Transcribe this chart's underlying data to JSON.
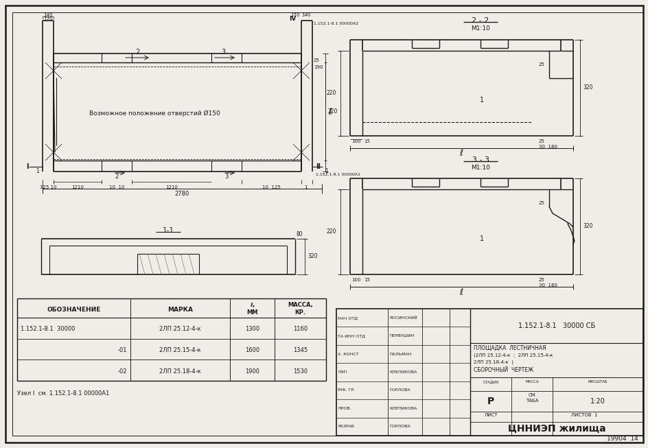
{
  "bg_color": "#f0ede8",
  "line_color": "#1a1a1a",
  "title": "1.152.1-8.1   30000 СБ",
  "sheet_title1": "ПЛОЩАДКА  ЛЕСТНИЧНАЯ",
  "sheet_title2": "(2ЛП 25.12-4-к  ;  2ЛП 25.15-4-к",
  "sheet_title3": "2ЛП 25.18-4-к  )",
  "sheet_title4": "СБОРОЧНЫЙ  ЧЕРТЕЖ",
  "stage": "Р",
  "mass_label": "СМ\nТАБА",
  "scale": "1:20",
  "list_label": "ЛИСТ",
  "sheets_label": "ЛИСТОВ  1",
  "org": "ЦННИЭП жилища",
  "drawing_num": "19904  14",
  "roles": [
    "НАЧ ОТД",
    "ТА ИНН ОТД",
    "А. КОНСТ",
    "ГИП",
    "РУК. ГР.",
    "ПРОВ.",
    "РАЗРАБ"
  ],
  "names": [
    "РОСИНСКИЙ",
    "ПЕРВУШИН",
    "ПАЛЬМАН",
    "КЛЕПИКОВА",
    "ГОРЛОВА",
    "КЛЕПИКОВА",
    "ГОРЛОВА"
  ],
  "table_col_headers": [
    "ОБОЗНАЧЕНИЕ",
    "МАРКА",
    "l,\nМM",
    "МАССА,\nКР."
  ],
  "table_rows": [
    [
      "1.152.1-8.1  30000",
      "2ЛП 25.12-4-к",
      "1300",
      "1160"
    ],
    [
      "-01",
      "2ЛП 25.15-4-к",
      "1600",
      "1345"
    ],
    [
      "-02",
      "2ЛП 25.18-4-к",
      "1900",
      "1530"
    ]
  ],
  "note": "Узел I  см. 1.152.1-8.1 00000А1"
}
